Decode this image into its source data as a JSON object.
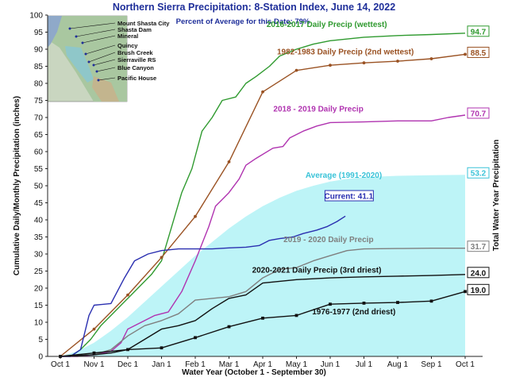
{
  "chart_data": {
    "type": "line",
    "title": "Northern Sierra Precipitation: 8-Station Index, June 14, 2022",
    "subtitle": "Percent of Average for this Date: 79%",
    "xlabel": "Water Year (October 1 - September 30)",
    "ylabel": "Cumulative Daily/Monthly Precipitation (inches)",
    "ylabel_right": "Total Water Year Precipitation",
    "ylim": [
      0,
      100
    ],
    "y_ticks": [
      0,
      5,
      10,
      15,
      20,
      25,
      30,
      35,
      40,
      45,
      50,
      55,
      60,
      65,
      70,
      75,
      80,
      85,
      90,
      95,
      100
    ],
    "x_ticks": [
      "Oct 1",
      "Nov 1",
      "Dec 1",
      "Jan 1",
      "Feb 1",
      "Mar 1",
      "Apr 1",
      "May 1",
      "Jun 1",
      "Jul 1",
      "Aug 1",
      "Sep 1",
      "Oct 1"
    ],
    "grid": false,
    "average_area": {
      "name": "Average (1991-2020)",
      "end_value": "53.2",
      "color": "#bdf4f7",
      "label_color": "#3ac3d8",
      "points": [
        [
          0,
          0
        ],
        [
          0.5,
          1.5
        ],
        [
          1,
          4
        ],
        [
          1.5,
          7.5
        ],
        [
          2,
          11.5
        ],
        [
          2.5,
          16
        ],
        [
          3,
          20.5
        ],
        [
          3.5,
          25
        ],
        [
          4,
          29.5
        ],
        [
          4.5,
          33.5
        ],
        [
          5,
          37.5
        ],
        [
          5.5,
          41
        ],
        [
          6,
          44
        ],
        [
          6.5,
          46.5
        ],
        [
          7,
          48.5
        ],
        [
          7.5,
          50
        ],
        [
          8,
          51.2
        ],
        [
          8.5,
          52
        ],
        [
          9,
          52.5
        ],
        [
          10,
          52.9
        ],
        [
          11,
          53.1
        ],
        [
          12,
          53.2
        ]
      ]
    },
    "series": [
      {
        "name": "2016-2017 Daily Precip (wettest)",
        "color": "#2f9a2f",
        "end_value": "94.7",
        "points": [
          [
            0,
            0
          ],
          [
            0.3,
            0
          ],
          [
            0.6,
            2
          ],
          [
            0.9,
            5
          ],
          [
            1.2,
            9
          ],
          [
            1.5,
            12
          ],
          [
            1.8,
            15
          ],
          [
            2.1,
            18
          ],
          [
            2.4,
            21
          ],
          [
            2.7,
            24
          ],
          [
            3,
            28
          ],
          [
            3.3,
            38
          ],
          [
            3.6,
            48
          ],
          [
            3.9,
            55
          ],
          [
            4.2,
            66
          ],
          [
            4.5,
            70
          ],
          [
            4.8,
            75
          ],
          [
            5.2,
            76
          ],
          [
            5.5,
            80
          ],
          [
            5.8,
            82
          ],
          [
            6.2,
            85
          ],
          [
            6.5,
            88
          ],
          [
            7,
            90
          ],
          [
            7.5,
            91.5
          ],
          [
            8,
            92.5
          ],
          [
            9,
            93.5
          ],
          [
            10,
            94
          ],
          [
            11,
            94.3
          ],
          [
            12,
            94.7
          ]
        ]
      },
      {
        "name": "1982-1983 Daily Precip (2nd wettest)",
        "color": "#9a5223",
        "end_value": "88.5",
        "marker": "circle",
        "points": [
          [
            0,
            0
          ],
          [
            1,
            8
          ],
          [
            2,
            18
          ],
          [
            3,
            29
          ],
          [
            4,
            41
          ],
          [
            5,
            57
          ],
          [
            6,
            77.5
          ],
          [
            7,
            83.8
          ],
          [
            8,
            85.3
          ],
          [
            9,
            86
          ],
          [
            10,
            86.5
          ],
          [
            11,
            87.2
          ],
          [
            12,
            88.5
          ]
        ]
      },
      {
        "name": "2018 - 2019 Daily Precip",
        "color": "#b033b0",
        "end_value": "70.7",
        "points": [
          [
            0,
            0
          ],
          [
            0.5,
            0
          ],
          [
            1,
            0.5
          ],
          [
            1.5,
            1.5
          ],
          [
            1.8,
            4
          ],
          [
            2,
            8
          ],
          [
            2.4,
            10
          ],
          [
            2.8,
            12
          ],
          [
            3.2,
            13
          ],
          [
            3.6,
            19
          ],
          [
            4,
            28
          ],
          [
            4.2,
            33
          ],
          [
            4.4,
            38
          ],
          [
            4.6,
            44
          ],
          [
            4.8,
            46
          ],
          [
            5,
            48
          ],
          [
            5.3,
            52
          ],
          [
            5.5,
            56
          ],
          [
            5.8,
            58
          ],
          [
            6.3,
            61
          ],
          [
            6.6,
            61.5
          ],
          [
            6.8,
            64
          ],
          [
            7.2,
            66
          ],
          [
            7.6,
            67.5
          ],
          [
            8,
            68.5
          ],
          [
            9,
            68.7
          ],
          [
            10,
            69
          ],
          [
            11,
            69
          ],
          [
            11.5,
            70
          ],
          [
            12,
            70.7
          ]
        ]
      },
      {
        "name": "Current: 41.1",
        "color": "#2a2fb0",
        "points": [
          [
            0,
            0
          ],
          [
            0.3,
            0
          ],
          [
            0.6,
            2
          ],
          [
            0.85,
            12
          ],
          [
            1,
            15
          ],
          [
            1.5,
            15.5
          ],
          [
            1.9,
            23
          ],
          [
            2.2,
            28
          ],
          [
            2.6,
            30
          ],
          [
            3,
            31
          ],
          [
            3.5,
            31.5
          ],
          [
            4,
            31.5
          ],
          [
            4.5,
            31.5
          ],
          [
            5,
            31.8
          ],
          [
            5.5,
            32
          ],
          [
            5.9,
            32.5
          ],
          [
            6.2,
            34
          ],
          [
            6.5,
            34.5
          ],
          [
            6.9,
            35
          ],
          [
            7.2,
            36
          ],
          [
            7.6,
            37
          ],
          [
            7.9,
            38
          ],
          [
            8.2,
            39.5
          ],
          [
            8.45,
            41.1
          ]
        ]
      },
      {
        "name": "2019 - 2020 Daily Precip",
        "color": "#7f7f7f",
        "end_value": "31.7",
        "points": [
          [
            0,
            0
          ],
          [
            1,
            0.5
          ],
          [
            1.5,
            2
          ],
          [
            2,
            6
          ],
          [
            2.5,
            9
          ],
          [
            3,
            10.5
          ],
          [
            3.5,
            12.5
          ],
          [
            4,
            16.5
          ],
          [
            4.5,
            17
          ],
          [
            5,
            17.5
          ],
          [
            5.5,
            19
          ],
          [
            6,
            23
          ],
          [
            6.5,
            25.5
          ],
          [
            7,
            26
          ],
          [
            7.5,
            28
          ],
          [
            8,
            29.5
          ],
          [
            8.5,
            31
          ],
          [
            9,
            31.5
          ],
          [
            10,
            31.6
          ],
          [
            11,
            31.7
          ],
          [
            12,
            31.7
          ]
        ]
      },
      {
        "name": "2020-2021 Daily Precip (3rd driest)",
        "color": "#111111",
        "end_value": "24.0",
        "points": [
          [
            0,
            0
          ],
          [
            1,
            0.5
          ],
          [
            1.5,
            1
          ],
          [
            2,
            2
          ],
          [
            2.5,
            5
          ],
          [
            3,
            8
          ],
          [
            3.5,
            9
          ],
          [
            4,
            10.5
          ],
          [
            4.5,
            14
          ],
          [
            5,
            17
          ],
          [
            5.5,
            18
          ],
          [
            6,
            21.5
          ],
          [
            6.5,
            22
          ],
          [
            7,
            22.5
          ],
          [
            8,
            23
          ],
          [
            9,
            23.3
          ],
          [
            10,
            23.5
          ],
          [
            11,
            23.7
          ],
          [
            12,
            24
          ]
        ]
      },
      {
        "name": "1976-1977 (2nd driest)",
        "color": "#111111",
        "end_value": "19.0",
        "marker": "square",
        "points": [
          [
            0,
            0
          ],
          [
            1,
            1
          ],
          [
            2,
            2
          ],
          [
            3,
            2.5
          ],
          [
            4,
            5.5
          ],
          [
            5,
            8.7
          ],
          [
            6,
            11.2
          ],
          [
            7,
            12
          ],
          [
            8,
            15.3
          ],
          [
            9,
            15.6
          ],
          [
            10,
            15.8
          ],
          [
            11,
            16.2
          ],
          [
            12,
            19
          ]
        ]
      }
    ]
  },
  "map_inset": {
    "stations": [
      "Mount Shasta City",
      "Shasta Dam",
      "Mineral",
      "Quincy",
      "Brush Creek",
      "Sierraville RS",
      "Blue Canyon",
      "Pacific House"
    ]
  }
}
